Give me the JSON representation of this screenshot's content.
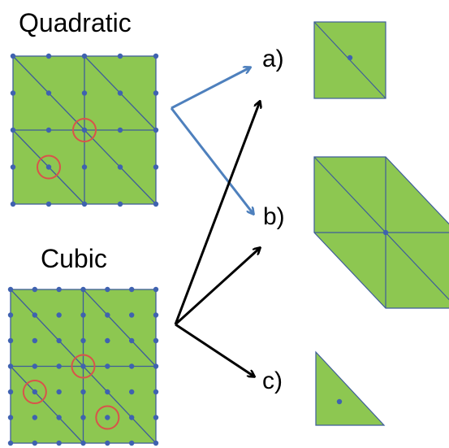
{
  "labels": {
    "quadratic": "Quadratic",
    "cubic": "Cubic",
    "a": "a)",
    "b": "b)",
    "c": "c)"
  },
  "colors": {
    "fill": "#8dc751",
    "edge": "#3e5d9a",
    "node": "#3f62b0",
    "highlight": "#d9534a",
    "arrow_blue": "#4e80bd",
    "arrow_black": "#000000"
  }
}
